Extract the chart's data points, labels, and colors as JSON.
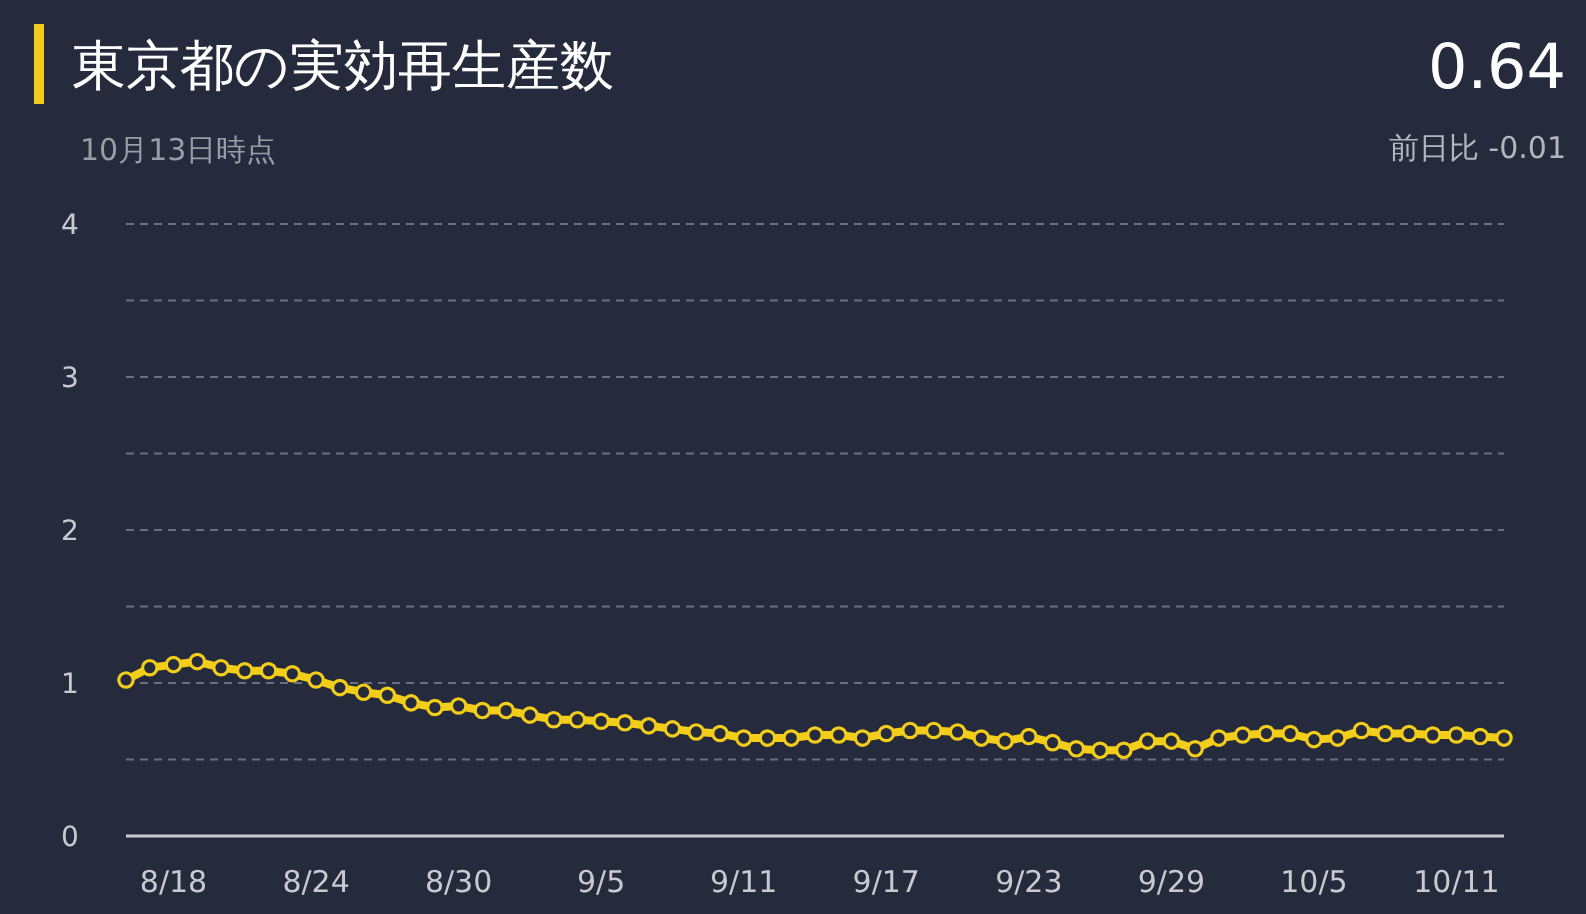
{
  "chart_data": {
    "type": "line",
    "title": "東京都の実効再生産数",
    "subtitle": "10月13日時点",
    "annotations": [
      "0.64",
      "前日比 -0.01"
    ],
    "x": [
      "--08-16",
      "--08-17",
      "--08-18",
      "--08-19",
      "--08-20",
      "--08-21",
      "--08-22",
      "--08-23",
      "--08-24",
      "--08-25",
      "--08-26",
      "--08-27",
      "--08-28",
      "--08-29",
      "--08-30",
      "--08-31",
      "--09-01",
      "--09-02",
      "--09-03",
      "--09-04",
      "--09-05",
      "--09-06",
      "--09-07",
      "--09-08",
      "--09-09",
      "--09-10",
      "--09-11",
      "--09-12",
      "--09-13",
      "--09-14",
      "--09-15",
      "--09-16",
      "--09-17",
      "--09-18",
      "--09-19",
      "--09-20",
      "--09-21",
      "--09-22",
      "--09-23",
      "--09-24",
      "--09-25",
      "--09-26",
      "--09-27",
      "--09-28",
      "--09-29",
      "--09-30",
      "--10-01",
      "--10-02",
      "--10-03",
      "--10-04",
      "--10-05",
      "--10-06",
      "--10-07",
      "--10-08",
      "--10-09",
      "--10-10",
      "--10-11",
      "--10-12",
      "--10-13"
    ],
    "series": [
      {
        "color": "#f2cd1a",
        "values": [
          1.02,
          1.1,
          1.12,
          1.14,
          1.1,
          1.08,
          1.08,
          1.06,
          1.02,
          0.97,
          0.94,
          0.92,
          0.87,
          0.84,
          0.85,
          0.82,
          0.82,
          0.79,
          0.76,
          0.76,
          0.75,
          0.74,
          0.72,
          0.7,
          0.68,
          0.67,
          0.64,
          0.64,
          0.64,
          0.66,
          0.66,
          0.64,
          0.67,
          0.69,
          0.69,
          0.68,
          0.64,
          0.62,
          0.65,
          0.61,
          0.57,
          0.56,
          0.56,
          0.62,
          0.62,
          0.57,
          0.64,
          0.66,
          0.67,
          0.67,
          0.63,
          0.64,
          0.69,
          0.67,
          0.67,
          0.66,
          0.66,
          0.65,
          0.64
        ]
      }
    ],
    "xlim": [
      "--08-16",
      "--10-13"
    ],
    "xticks": [
      {
        "value": "--08-18",
        "label": "8/18"
      },
      {
        "value": "--08-24",
        "label": "8/24"
      },
      {
        "value": "--08-30",
        "label": "8/30"
      },
      {
        "value": "--09-05",
        "label": "9/5"
      },
      {
        "value": "--09-11",
        "label": "9/11"
      },
      {
        "value": "--09-17",
        "label": "9/17"
      },
      {
        "value": "--09-23",
        "label": "9/23"
      },
      {
        "value": "--09-29",
        "label": "9/29"
      },
      {
        "value": "--10-05",
        "label": "10/5"
      },
      {
        "value": "--10-11",
        "label": "10/11"
      }
    ],
    "ylim": [
      0,
      4
    ],
    "yticks": [
      0,
      {
        "value": 0.5,
        "label": null
      },
      1,
      {
        "value": 1.5,
        "label": null
      },
      2,
      {
        "value": 2.5,
        "label": null
      },
      3,
      {
        "value": 3.5,
        "label": null
      },
      4
    ],
    "grid": "y",
    "marker": "circle",
    "line_style": "solid"
  }
}
